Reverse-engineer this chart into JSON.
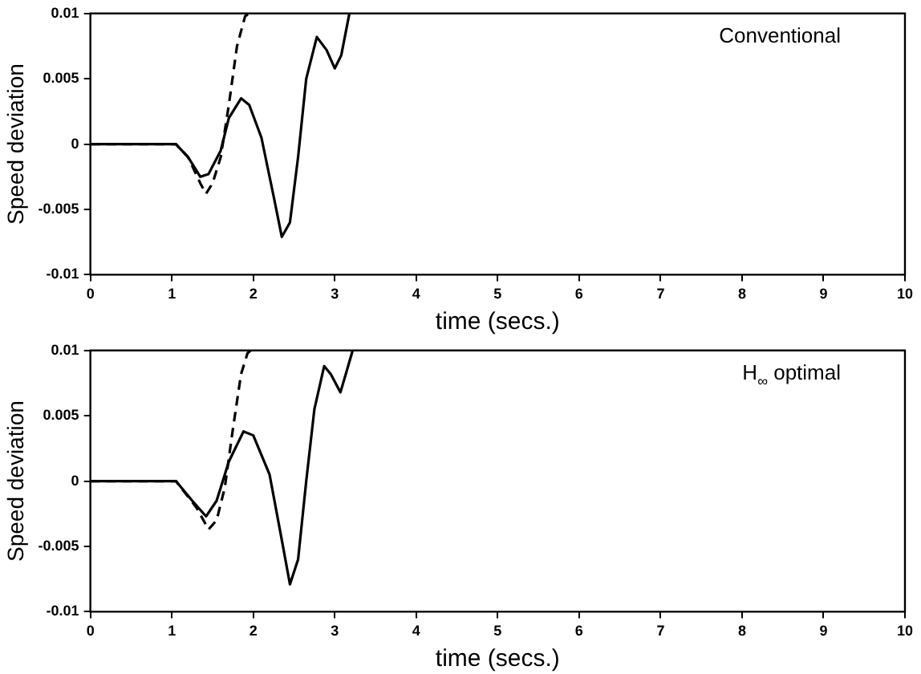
{
  "chart_data": [
    {
      "type": "line",
      "xlabel": "time (secs.)",
      "ylabel": "Speed deviation",
      "annotations": [
        "Conventional"
      ],
      "xlim": [
        0,
        10
      ],
      "xticks": [
        0,
        1,
        2,
        3,
        4,
        5,
        6,
        7,
        8,
        9,
        10
      ],
      "ylim": [
        -0.01,
        0.01
      ],
      "yticks": [
        -0.01,
        -0.005,
        0,
        0.005,
        0.01
      ],
      "grid": false,
      "legend": false,
      "marker": "none",
      "series": [
        {
          "color": "#000000",
          "line_style": "solid",
          "x": [
            0,
            1.05,
            1.2,
            1.35,
            1.45,
            1.6,
            1.7,
            1.85,
            1.95,
            2.1,
            2.25,
            2.35,
            2.45,
            2.55,
            2.65,
            2.78,
            2.9,
            3.0,
            3.08,
            3.18
          ],
          "values": [
            0,
            0,
            -0.001,
            -0.0025,
            -0.0023,
            -0.0005,
            0.002,
            0.0035,
            0.003,
            0.0005,
            -0.004,
            -0.0071,
            -0.006,
            -0.001,
            0.005,
            0.0082,
            0.0072,
            0.0058,
            0.0068,
            0.01
          ]
        },
        {
          "color": "#000000",
          "line_style": "dashed",
          "x": [
            0,
            1.05,
            1.2,
            1.35,
            1.42,
            1.5,
            1.6,
            1.7,
            1.8,
            1.9,
            1.95
          ],
          "values": [
            0,
            0,
            -0.001,
            -0.003,
            -0.0038,
            -0.003,
            -0.001,
            0.003,
            0.0075,
            0.0098,
            0.01
          ]
        }
      ]
    },
    {
      "type": "line",
      "xlabel": "time (secs.)",
      "ylabel": "Speed deviation",
      "annotations": [
        "H$_{∞}$ optimal"
      ],
      "xlim": [
        0,
        10
      ],
      "xticks": [
        0,
        1,
        2,
        3,
        4,
        5,
        6,
        7,
        8,
        9,
        10
      ],
      "ylim": [
        -0.01,
        0.01
      ],
      "yticks": [
        -0.01,
        -0.005,
        0,
        0.005,
        0.01
      ],
      "grid": false,
      "legend": false,
      "marker": "none",
      "series": [
        {
          "color": "#000000",
          "line_style": "solid",
          "x": [
            0,
            1.05,
            1.25,
            1.42,
            1.55,
            1.7,
            1.88,
            2.0,
            2.2,
            2.35,
            2.45,
            2.55,
            2.65,
            2.75,
            2.87,
            2.95,
            3.07,
            3.15,
            3.22
          ],
          "values": [
            0,
            0,
            -0.0015,
            -0.0027,
            -0.0015,
            0.0015,
            0.0038,
            0.0035,
            0.0005,
            -0.0045,
            -0.0079,
            -0.006,
            0,
            0.0055,
            0.0088,
            0.0082,
            0.0068,
            0.0085,
            0.01
          ]
        },
        {
          "color": "#000000",
          "line_style": "dashed",
          "x": [
            0,
            1.05,
            1.3,
            1.45,
            1.55,
            1.65,
            1.75,
            1.85,
            1.93,
            1.97
          ],
          "values": [
            0,
            0,
            -0.002,
            -0.0037,
            -0.003,
            -0.0005,
            0.004,
            0.0082,
            0.0098,
            0.01
          ]
        }
      ]
    }
  ]
}
